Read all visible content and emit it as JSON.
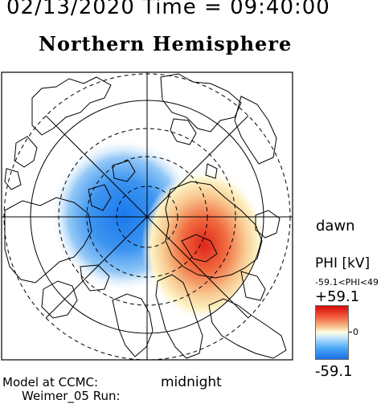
{
  "header": {
    "datetime": "02/13/2020 Time = 09:40:00",
    "title": "Northern Hemisphere"
  },
  "plot": {
    "dawn_label": "dawn",
    "midnight_label": "midnight"
  },
  "colorbar": {
    "label": "PHI [kV]",
    "range_text": "-59.1<PHI<49",
    "max_label": "+59.1",
    "min_label": "-59.1",
    "zero_label": "0",
    "colors": {
      "max": "#d40a0a",
      "mid": "#ffffe8",
      "min": "#1a70e8"
    }
  },
  "footer": {
    "credit_line1": "Model at CCMC:",
    "credit_line2": "Weimer_05 Run:"
  }
}
